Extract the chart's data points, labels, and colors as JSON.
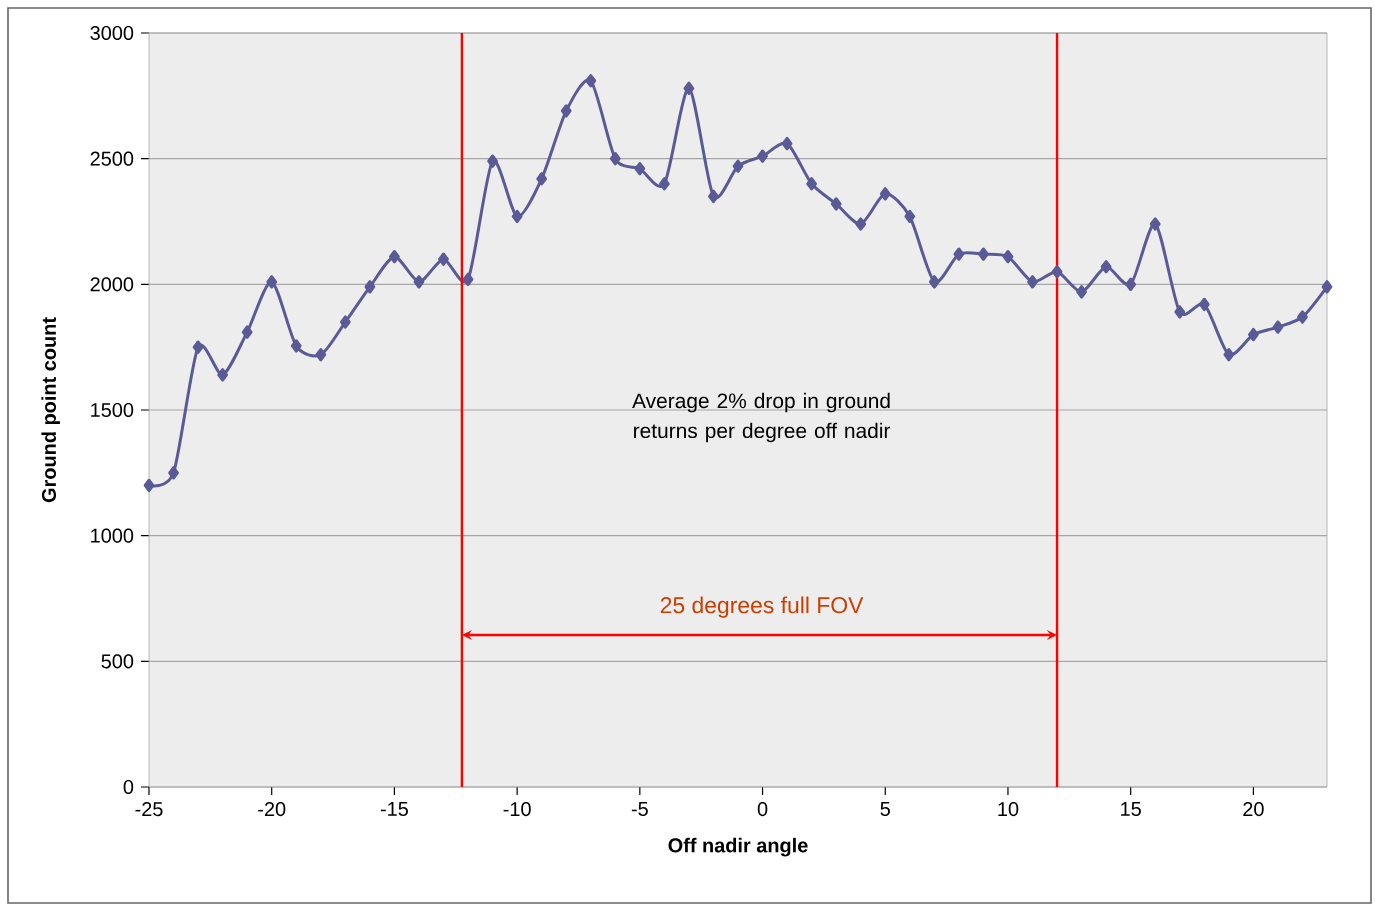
{
  "chart_data": {
    "type": "line",
    "xlabel": "Off nadir angle",
    "ylabel": "Ground point count",
    "x": [
      -25,
      -24,
      -23,
      -22,
      -21,
      -20,
      -19,
      -18,
      -17,
      -16,
      -15,
      -14,
      -13,
      -12,
      -11,
      -10,
      -9,
      -8,
      -7,
      -6,
      -5,
      -4,
      -3,
      -2,
      -1,
      0,
      1,
      2,
      3,
      4,
      5,
      6,
      7,
      8,
      9,
      10,
      11,
      12,
      13,
      14,
      15,
      16,
      17,
      18,
      19,
      20,
      21,
      22,
      23
    ],
    "series": [
      {
        "color": "#5a5a96",
        "values": [
          1200,
          1250,
          1750,
          1640,
          1810,
          2010,
          1755,
          1720,
          1850,
          1990,
          2110,
          2010,
          2100,
          2020,
          2490,
          2270,
          2420,
          2690,
          2810,
          2500,
          2460,
          2400,
          2780,
          2350,
          2470,
          2510,
          2560,
          2400,
          2320,
          2240,
          2360,
          2270,
          2010,
          2120,
          2120,
          2110,
          2010,
          2050,
          1970,
          2070,
          2000,
          2240,
          1890,
          1920,
          1720,
          1800,
          1830,
          1870,
          1990
        ]
      }
    ],
    "xlim": [
      -25,
      23
    ],
    "ylim": [
      0,
      3000
    ],
    "xticks": [
      -25,
      -20,
      -15,
      -10,
      -5,
      0,
      5,
      10,
      15,
      20
    ],
    "yticks": [
      0,
      500,
      1000,
      1500,
      2000,
      2500,
      3000
    ],
    "grid": "y",
    "marker": "diamond",
    "line_style": "solid",
    "ref_lines": [
      {
        "axis": "x",
        "value": -12.25,
        "color": "#ff0000"
      },
      {
        "axis": "x",
        "value": 12,
        "color": "#ff0000"
      }
    ],
    "annotations": [
      "Average 2% drop in ground returns per degree off nadir",
      "25 degrees full FOV"
    ]
  }
}
